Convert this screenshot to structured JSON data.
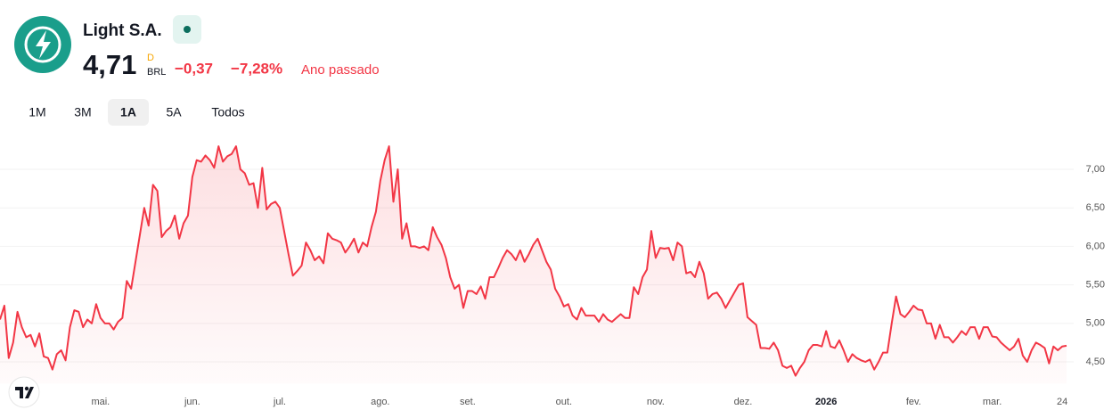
{
  "header": {
    "name": "Light S.A.",
    "price": "4,71",
    "interval": "D",
    "currency": "BRL",
    "change": "−0,37",
    "change_percent": "−7,28%",
    "period": "Ano passado"
  },
  "tabs": {
    "items": [
      "1M",
      "3M",
      "1A",
      "5A",
      "Todos"
    ],
    "selected": 2
  },
  "chart_data": {
    "type": "area",
    "color": "#f23645",
    "values": [
      5.05,
      5.23,
      4.55,
      4.75,
      5.15,
      4.95,
      4.82,
      4.85,
      4.7,
      4.87,
      4.57,
      4.55,
      4.4,
      4.6,
      4.65,
      4.52,
      4.95,
      5.17,
      5.15,
      4.95,
      5.05,
      5.0,
      5.25,
      5.07,
      5.0,
      5.0,
      4.92,
      5.02,
      5.07,
      5.55,
      5.45,
      5.8,
      6.15,
      6.5,
      6.27,
      6.8,
      6.72,
      6.12,
      6.2,
      6.25,
      6.4,
      6.1,
      6.3,
      6.4,
      6.9,
      7.12,
      7.1,
      7.18,
      7.12,
      7.02,
      7.3,
      7.1,
      7.17,
      7.2,
      7.3,
      7.0,
      6.95,
      6.8,
      6.82,
      6.5,
      7.02,
      6.48,
      6.55,
      6.58,
      6.5,
      6.2,
      5.9,
      5.62,
      5.68,
      5.75,
      6.05,
      5.95,
      5.82,
      5.87,
      5.78,
      6.17,
      6.1,
      6.08,
      6.05,
      5.92,
      6.0,
      6.1,
      5.92,
      6.05,
      6.0,
      6.25,
      6.45,
      6.85,
      7.12,
      7.3,
      6.58,
      7.0,
      6.1,
      6.3,
      6.0,
      6.0,
      5.98,
      6.0,
      5.95,
      6.25,
      6.12,
      6.02,
      5.85,
      5.6,
      5.45,
      5.5,
      5.2,
      5.42,
      5.42,
      5.38,
      5.48,
      5.32,
      5.6,
      5.6,
      5.72,
      5.85,
      5.95,
      5.9,
      5.82,
      5.95,
      5.8,
      5.9,
      6.02,
      6.1,
      5.95,
      5.8,
      5.7,
      5.45,
      5.35,
      5.22,
      5.25,
      5.1,
      5.05,
      5.2,
      5.1,
      5.1,
      5.1,
      5.02,
      5.12,
      5.05,
      5.02,
      5.07,
      5.12,
      5.07,
      5.07,
      5.47,
      5.38,
      5.6,
      5.7,
      6.2,
      5.85,
      5.98,
      5.97,
      5.98,
      5.82,
      6.05,
      6.0,
      5.65,
      5.67,
      5.6,
      5.8,
      5.65,
      5.32,
      5.38,
      5.4,
      5.32,
      5.2,
      5.3,
      5.4,
      5.5,
      5.52,
      5.08,
      5.03,
      4.98,
      4.68,
      4.68,
      4.67,
      4.75,
      4.65,
      4.45,
      4.42,
      4.45,
      4.32,
      4.42,
      4.5,
      4.65,
      4.72,
      4.72,
      4.7,
      4.9,
      4.7,
      4.68,
      4.78,
      4.65,
      4.5,
      4.6,
      4.55,
      4.52,
      4.5,
      4.53,
      4.4,
      4.5,
      4.62,
      4.62,
      5.0,
      5.35,
      5.12,
      5.08,
      5.15,
      5.23,
      5.18,
      5.17,
      5.0,
      5.0,
      4.8,
      4.98,
      4.82,
      4.82,
      4.75,
      4.82,
      4.9,
      4.85,
      4.95,
      4.95,
      4.8,
      4.95,
      4.95,
      4.83,
      4.82,
      4.75,
      4.7,
      4.65,
      4.7,
      4.8,
      4.58,
      4.5,
      4.65,
      4.75,
      4.72,
      4.68,
      4.48,
      4.7,
      4.65,
      4.7,
      4.71
    ],
    "xlim": [
      0,
      244
    ],
    "xticks": [
      {
        "value": 23,
        "label": "mai."
      },
      {
        "value": 44,
        "label": "jun."
      },
      {
        "value": 64,
        "label": "jul."
      },
      {
        "value": 87,
        "label": "ago."
      },
      {
        "value": 107,
        "label": "set."
      },
      {
        "value": 129,
        "label": "out."
      },
      {
        "value": 150,
        "label": "nov."
      },
      {
        "value": 170,
        "label": "dez."
      },
      {
        "value": 189,
        "label": "2026",
        "bold": true
      },
      {
        "value": 209,
        "label": "fev."
      },
      {
        "value": 227,
        "label": "mar."
      },
      {
        "value": 243,
        "label": "24"
      }
    ],
    "ylim": [
      4.22,
      7.46
    ],
    "yticks": [
      {
        "value": 4.5,
        "label": "4,50"
      },
      {
        "value": 5,
        "label": "5,00"
      },
      {
        "value": 5.5,
        "label": "5,50"
      },
      {
        "value": 6,
        "label": "6,00"
      },
      {
        "value": 6.5,
        "label": "6,50"
      },
      {
        "value": 7,
        "label": "7,00"
      }
    ],
    "grid": true
  }
}
